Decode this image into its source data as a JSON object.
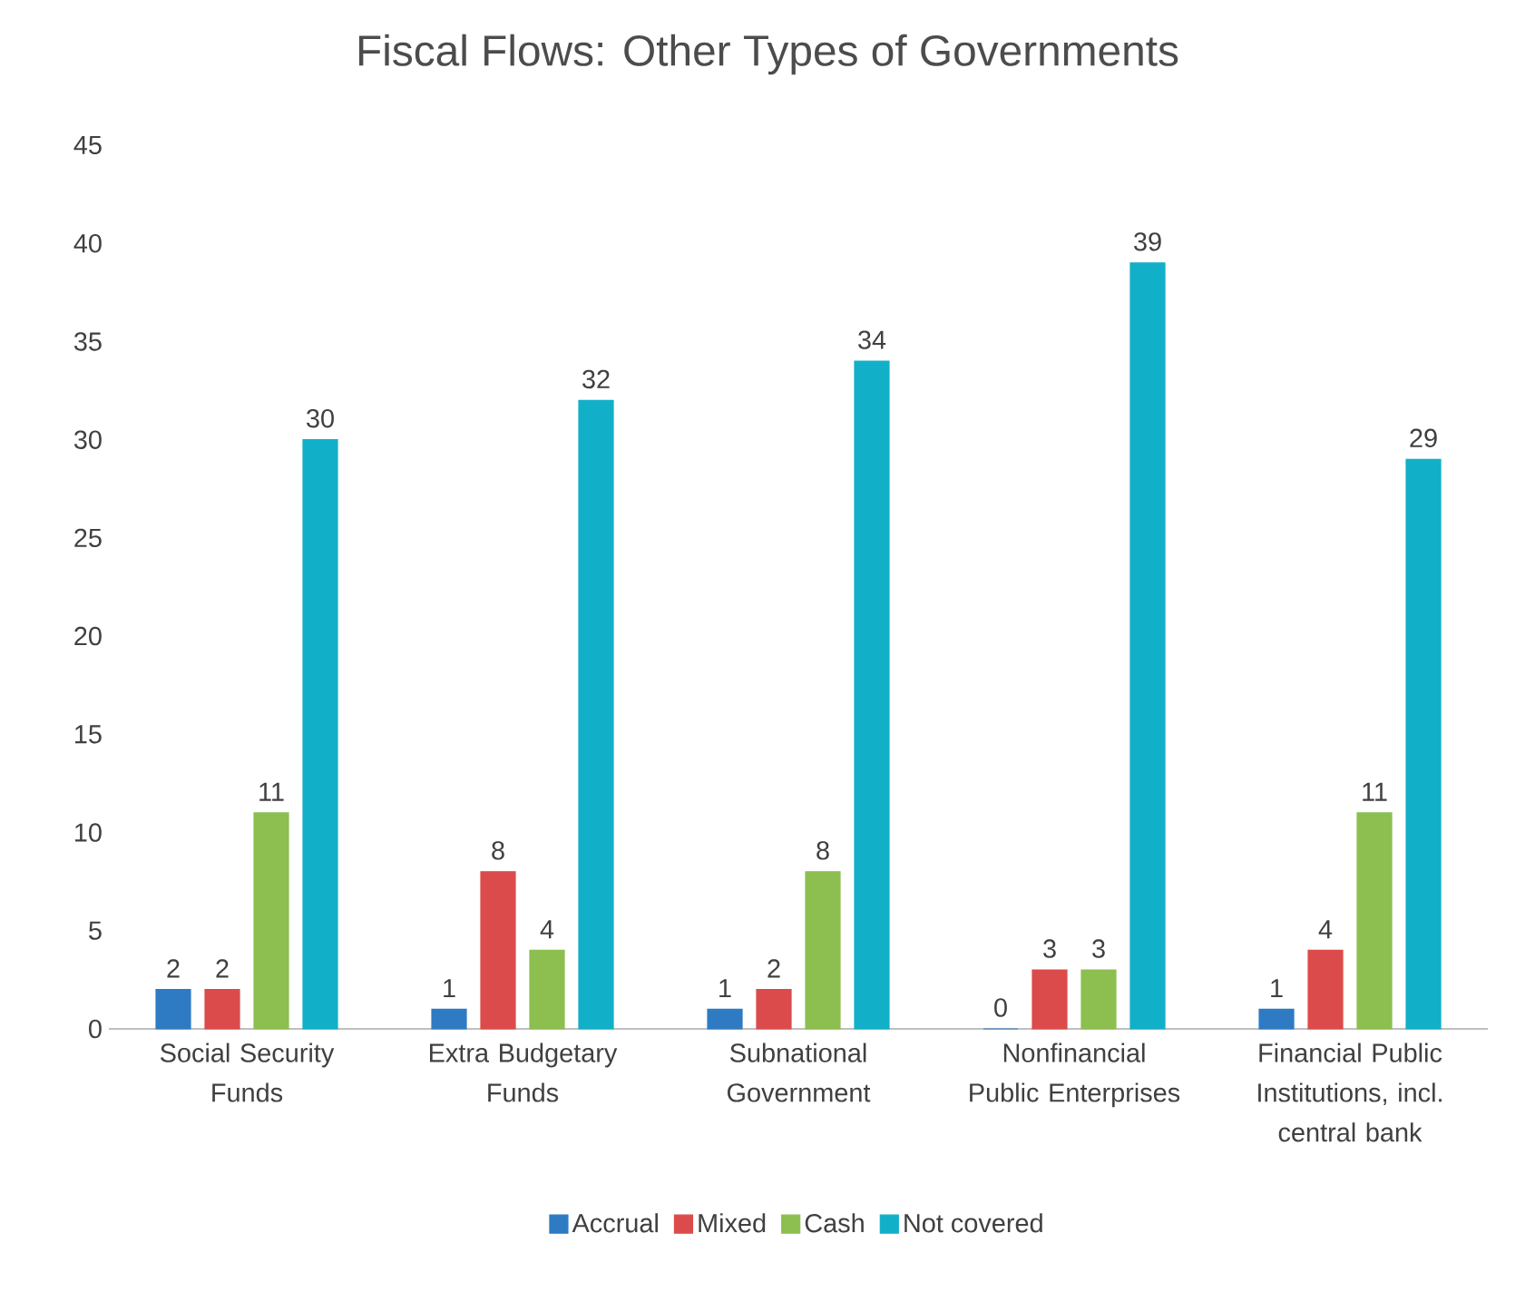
{
  "chart_data": {
    "type": "bar",
    "title": "Fiscal Flows: Other Types of Governments",
    "categories": [
      "Social Security Funds",
      "Extra Budgetary Funds",
      "Subnational Government",
      "Nonfinancial Public Enterprises",
      "Financial Public Institutions, incl. central bank"
    ],
    "series": [
      {
        "name": "Accrual",
        "color": "#2e7bc4",
        "values": [
          2,
          1,
          1,
          0,
          1
        ]
      },
      {
        "name": "Mixed",
        "color": "#dc4b4b",
        "values": [
          2,
          8,
          2,
          3,
          4
        ]
      },
      {
        "name": "Cash",
        "color": "#8cbf4f",
        "values": [
          11,
          4,
          8,
          3,
          11
        ]
      },
      {
        "name": "Not covered",
        "color": "#12b0c8",
        "values": [
          30,
          32,
          34,
          39,
          29
        ]
      }
    ],
    "ylim": [
      0,
      45
    ],
    "yticks": [
      0,
      5,
      10,
      15,
      20,
      25,
      30,
      35,
      40,
      45
    ],
    "grid": false,
    "legend": "bottom",
    "data_labels": true
  }
}
